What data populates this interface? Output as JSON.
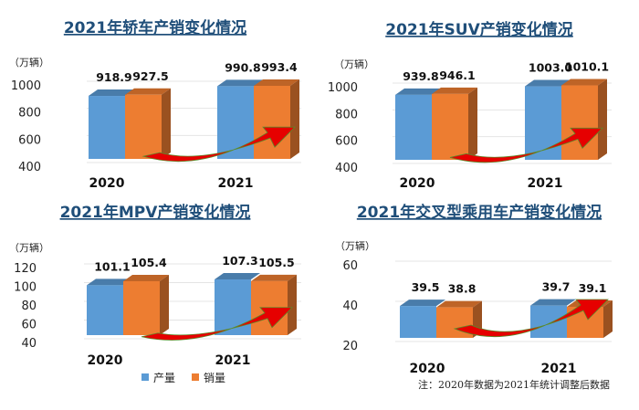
{
  "chart_data": [
    {
      "type": "bar",
      "title": "2021年轿车产销变化情况",
      "unit": "（万辆）",
      "categories": [
        "2020",
        "2021"
      ],
      "yticks": [
        400,
        600,
        800,
        1000
      ],
      "ylim": [
        400,
        1000
      ],
      "series": [
        {
          "name": "产量",
          "values": [
            918.9,
            990.8
          ]
        },
        {
          "name": "销量",
          "values": [
            927.5,
            993.4
          ]
        }
      ]
    },
    {
      "type": "bar",
      "title": "2021年SUV产销变化情况",
      "unit": "（万辆）",
      "categories": [
        "2020",
        "2021"
      ],
      "yticks": [
        400,
        600,
        800,
        1000
      ],
      "ylim": [
        400,
        1000
      ],
      "series": [
        {
          "name": "产量",
          "values": [
            939.8,
            1003.0
          ]
        },
        {
          "name": "销量",
          "values": [
            946.1,
            1010.1
          ]
        }
      ],
      "labels": [
        [
          "939.8",
          "1003.0"
        ],
        [
          "946.1",
          "1010.1"
        ]
      ]
    },
    {
      "type": "bar",
      "title": "2021年MPV产销变化情况",
      "unit": "（万辆）",
      "categories": [
        "2020",
        "2021"
      ],
      "yticks": [
        40,
        60,
        80,
        100,
        120
      ],
      "ylim": [
        40,
        120
      ],
      "series": [
        {
          "name": "产量",
          "values": [
            101.1,
            107.3
          ]
        },
        {
          "name": "销量",
          "values": [
            105.4,
            105.5
          ]
        }
      ]
    },
    {
      "type": "bar",
      "title": "2021年交叉型乘用车产销变化情况",
      "unit": "（万辆）",
      "categories": [
        "2020",
        "2021"
      ],
      "yticks": [
        20,
        40,
        60
      ],
      "ylim": [
        20,
        60
      ],
      "series": [
        {
          "name": "产量",
          "values": [
            39.5,
            39.7
          ]
        },
        {
          "name": "销量",
          "values": [
            38.8,
            39.1
          ]
        }
      ]
    }
  ],
  "legend": [
    {
      "name": "产量",
      "color": "#5b9bd5"
    },
    {
      "name": "销量",
      "color": "#ed7d31"
    }
  ],
  "note": "注：2020年数据为2021年统计调整后数据",
  "colors": {
    "production": "#5b9bd5",
    "sales": "#ed7d31",
    "arrow": "#e60000",
    "title": "#1f4e79"
  }
}
